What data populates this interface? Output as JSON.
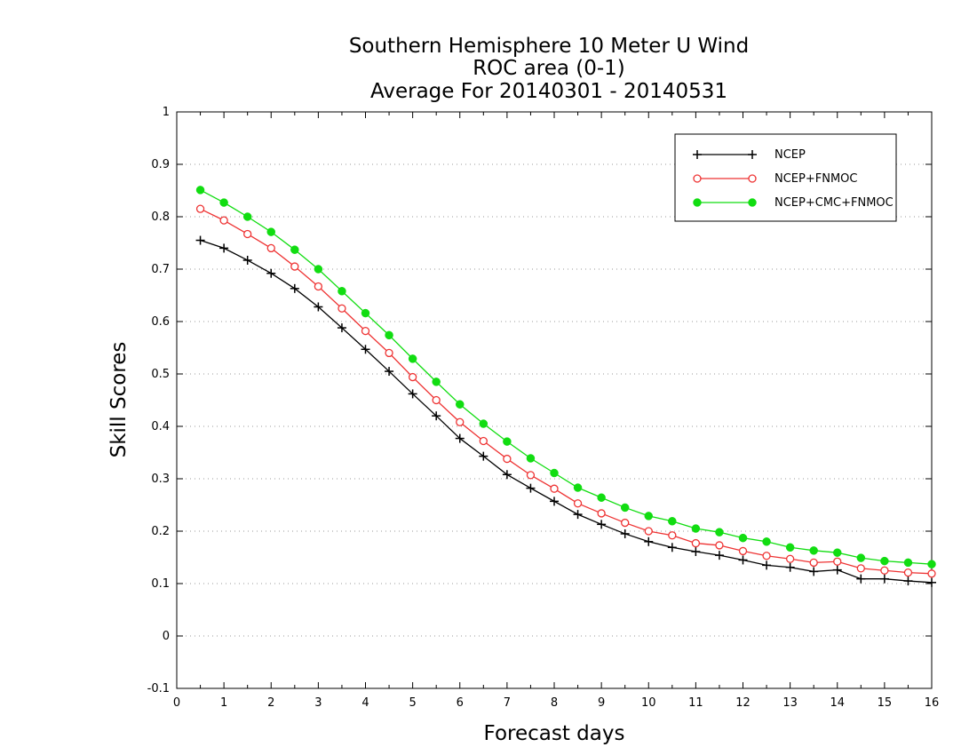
{
  "chart_data": {
    "type": "line",
    "title_lines": [
      "Southern Hemisphere 10 Meter U Wind",
      "ROC area (0-1)",
      "Average For 20140301 - 20140531"
    ],
    "xlabel": "Forecast days",
    "ylabel": "Skill Scores",
    "xlim": [
      0,
      16
    ],
    "ylim": [
      -0.1,
      1
    ],
    "x_ticks": [
      0,
      1,
      2,
      3,
      4,
      5,
      6,
      7,
      8,
      9,
      10,
      11,
      12,
      13,
      14,
      15,
      16
    ],
    "x_tick_labels": [
      "0",
      "1",
      "2",
      "3",
      "4",
      "5",
      "6",
      "7",
      "8",
      "9",
      "10",
      "11",
      "12",
      "13",
      "14",
      "15",
      "16"
    ],
    "y_ticks": [
      -0.1,
      0,
      0.1,
      0.2,
      0.3,
      0.4,
      0.5,
      0.6,
      0.7,
      0.8,
      0.9,
      1
    ],
    "y_tick_labels": [
      "-0.1",
      "0",
      "0.1",
      "0.2",
      "0.3",
      "0.4",
      "0.5",
      "0.6",
      "0.7",
      "0.8",
      "0.9",
      "1"
    ],
    "grid": "horizontal dotted",
    "legend_position": "top-right",
    "x": [
      0.5,
      1,
      1.5,
      2,
      2.5,
      3,
      3.5,
      4,
      4.5,
      5,
      5.5,
      6,
      6.5,
      7,
      7.5,
      8,
      8.5,
      9,
      9.5,
      10,
      10.5,
      11,
      11.5,
      12,
      12.5,
      13,
      13.5,
      14,
      14.5,
      15,
      15.5,
      16
    ],
    "series": [
      {
        "name": "NCEP",
        "color": "#000000",
        "marker": "plus",
        "values": [
          0.755,
          0.74,
          0.717,
          0.692,
          0.663,
          0.628,
          0.588,
          0.547,
          0.505,
          0.462,
          0.42,
          0.377,
          0.343,
          0.308,
          0.282,
          0.257,
          0.232,
          0.213,
          0.195,
          0.18,
          0.169,
          0.161,
          0.154,
          0.145,
          0.135,
          0.131,
          0.123,
          0.126,
          0.109,
          0.109,
          0.105,
          0.102
        ]
      },
      {
        "name": "NCEP+FNMOC",
        "color": "#ee3333",
        "marker": "open-circle",
        "values": [
          0.815,
          0.793,
          0.767,
          0.74,
          0.705,
          0.667,
          0.625,
          0.582,
          0.54,
          0.494,
          0.45,
          0.408,
          0.372,
          0.338,
          0.307,
          0.281,
          0.253,
          0.234,
          0.216,
          0.2,
          0.192,
          0.177,
          0.173,
          0.162,
          0.153,
          0.147,
          0.14,
          0.142,
          0.129,
          0.125,
          0.121,
          0.119
        ]
      },
      {
        "name": "NCEP+CMC+FNMOC",
        "color": "#11dd11",
        "marker": "filled-circle",
        "values": [
          0.851,
          0.827,
          0.8,
          0.771,
          0.737,
          0.7,
          0.658,
          0.616,
          0.574,
          0.529,
          0.485,
          0.442,
          0.405,
          0.371,
          0.339,
          0.311,
          0.283,
          0.264,
          0.245,
          0.229,
          0.219,
          0.205,
          0.198,
          0.187,
          0.18,
          0.169,
          0.163,
          0.159,
          0.149,
          0.143,
          0.14,
          0.137
        ]
      }
    ]
  }
}
